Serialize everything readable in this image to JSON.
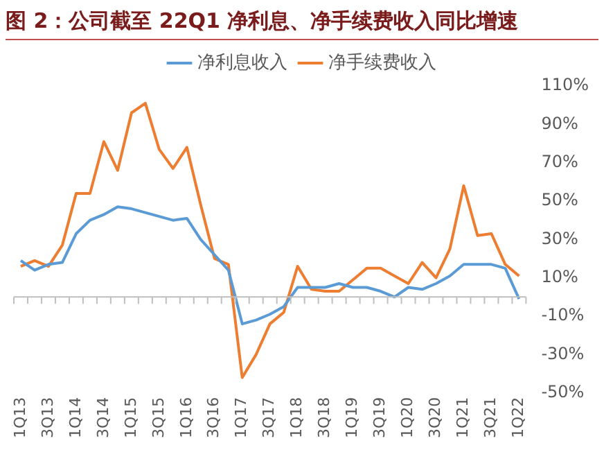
{
  "chart_data": {
    "type": "line",
    "title": "图 2：公司截至 22Q1 净利息、净手续费收入同比增速",
    "categories": [
      "1Q13",
      null,
      "3Q13",
      null,
      "1Q14",
      null,
      "3Q14",
      null,
      "1Q15",
      null,
      "3Q15",
      null,
      "1Q16",
      null,
      "3Q16",
      null,
      "1Q17",
      null,
      "3Q17",
      null,
      "1Q18",
      null,
      "3Q18",
      null,
      "1Q19",
      null,
      "3Q19",
      null,
      "1Q20",
      null,
      "3Q20",
      null,
      "1Q21",
      null,
      "3Q21",
      null,
      "1Q22"
    ],
    "series": [
      {
        "name": "净利息收入",
        "color": "#5b9bd5",
        "values": [
          19,
          14,
          17,
          18,
          33,
          40,
          43,
          47,
          46,
          44,
          42,
          40,
          41,
          30,
          22,
          14,
          -14,
          -12,
          -9,
          -5,
          5,
          5,
          5,
          7,
          5,
          5,
          3,
          0,
          5,
          4,
          7,
          11,
          17,
          17,
          17,
          15,
          -1
        ]
      },
      {
        "name": "净手续费收入",
        "color": "#ed7d31",
        "values": [
          16,
          19,
          16,
          27,
          54,
          54,
          81,
          66,
          96,
          101,
          77,
          67,
          78,
          48,
          20,
          17,
          -42,
          -30,
          -14,
          -8,
          16,
          4,
          3,
          3,
          9,
          15,
          15,
          11,
          7,
          18,
          10,
          25,
          58,
          32,
          33,
          17,
          11
        ]
      }
    ],
    "ylim": [
      -50,
      110
    ],
    "yticks": [
      {
        "value": -50,
        "label": "-50%"
      },
      {
        "value": -30,
        "label": "-30%"
      },
      {
        "value": -10,
        "label": "-10%"
      },
      {
        "value": 10,
        "label": "10%"
      },
      {
        "value": 30,
        "label": "30%"
      },
      {
        "value": 50,
        "label": "50%"
      },
      {
        "value": 70,
        "label": "70%"
      },
      {
        "value": 90,
        "label": "90%"
      },
      {
        "value": 110,
        "label": "110%"
      }
    ],
    "grid": false,
    "legend": "top",
    "marker": "none",
    "line_style": "solid"
  }
}
